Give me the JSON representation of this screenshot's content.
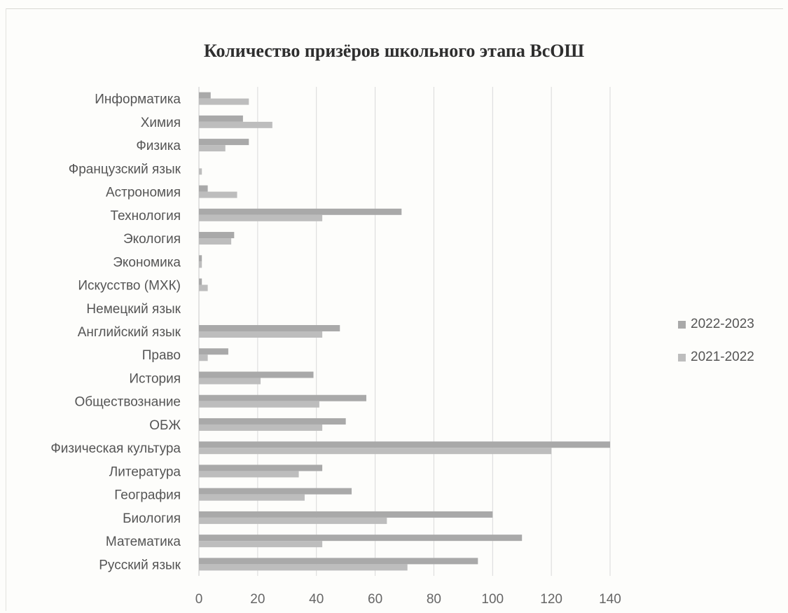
{
  "chart_data": {
    "type": "bar",
    "orientation": "horizontal",
    "title": "Количество призёров школьного этапа ВсОШ",
    "xlabel": "",
    "ylabel": "",
    "xlim": [
      0,
      140
    ],
    "xticks": [
      0,
      20,
      40,
      60,
      80,
      100,
      120,
      140
    ],
    "grid": true,
    "legend_position": "right",
    "categories": [
      "Информатика",
      "Химия",
      "Физика",
      "Французский язык",
      "Астрономия",
      "Технология",
      "Экология",
      "Экономика",
      "Искусство (МХК)",
      "Немецкий язык",
      "Английский язык",
      "Право",
      "История",
      "Обществознание",
      "ОБЖ",
      "Физическая культура",
      "Литература",
      "География",
      "Биология",
      "Математика",
      "Русский язык"
    ],
    "series": [
      {
        "name": "2022-2023",
        "color": "#a9a9a9",
        "values": [
          4,
          15,
          17,
          0,
          3,
          69,
          12,
          1,
          1,
          0,
          48,
          10,
          39,
          57,
          50,
          140,
          42,
          52,
          100,
          110,
          95
        ]
      },
      {
        "name": "2021-2022",
        "color": "#bdbdbd",
        "values": [
          17,
          25,
          9,
          1,
          13,
          42,
          11,
          1,
          3,
          0,
          42,
          3,
          21,
          41,
          42,
          120,
          34,
          36,
          64,
          42,
          71
        ]
      }
    ]
  }
}
